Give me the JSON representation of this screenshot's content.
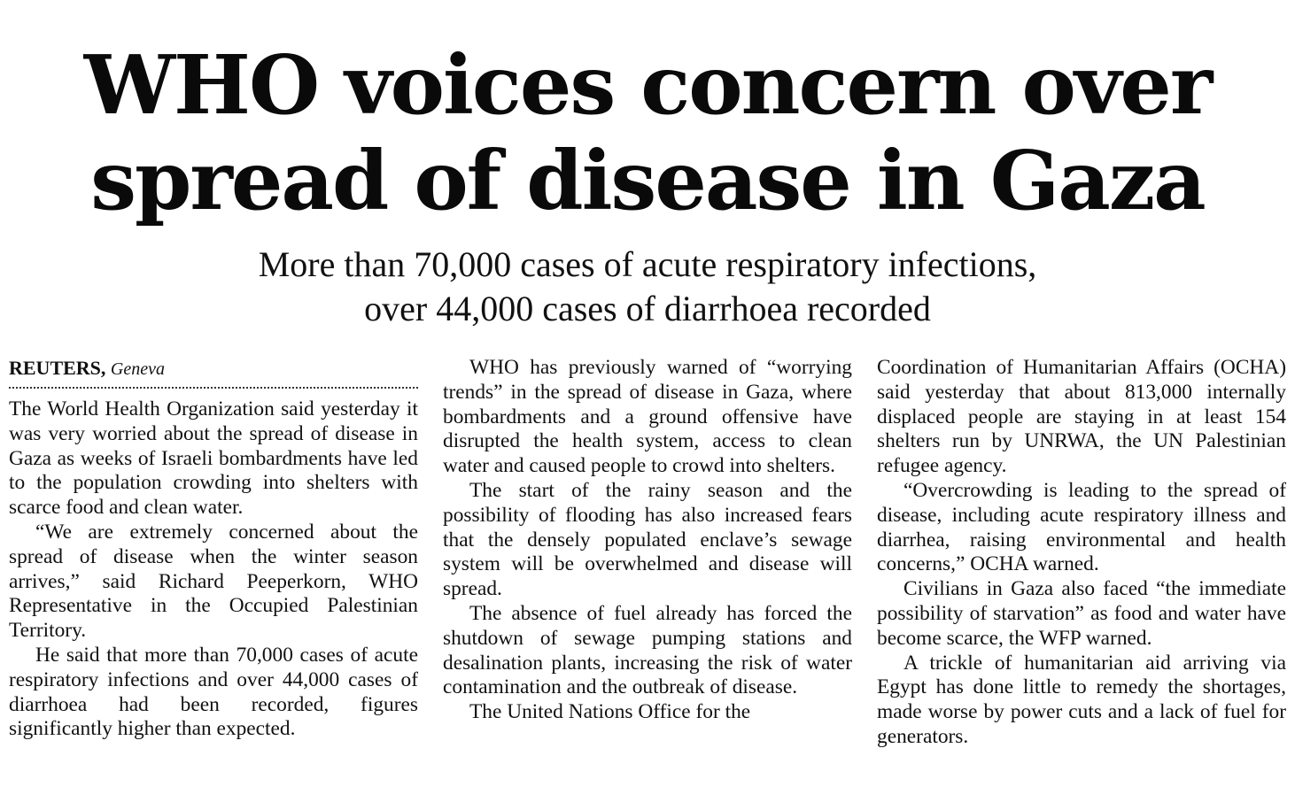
{
  "headline": {
    "line1": "WHO voices concern over",
    "line2": "spread of disease in Gaza"
  },
  "subhead": {
    "line1": "More than 70,000 cases of acute respiratory infections,",
    "line2": "over 44,000 cases of diarrhoea recorded"
  },
  "byline": {
    "agency": "REUTERS,",
    "place": "Geneva"
  },
  "body": {
    "p1": "The World Health Organization said yesterday it was very worried about the spread of disease in Gaza as weeks of Israeli bombardments have led to the population crowding into shelters with scarce food and clean water.",
    "p2": "“We are extremely concerned about the spread of disease when the winter season arrives,” said Richard Peeperkorn, WHO Representative in the Occupied Palestinian Territory.",
    "p3": "He said that more than 70,000 cases of acute respiratory infections and over 44,000 cases of diarrhoea had been recorded, figures significantly higher than expected.",
    "p4": "WHO has previously warned of “worrying trends” in the spread of disease in Gaza, where bombardments and a ground offensive have disrupted the health system, access to clean water and caused people to crowd into shelters.",
    "p5": "The start of the rainy season and the possibility of flooding has also increased fears that the densely populated enclave’s sewage system will be overwhelmed and disease will spread.",
    "p6": "The absence of fuel already has forced the shutdown of sewage pumping stations and desalination plants, increasing the risk of water contamination and the outbreak of disease.",
    "p7a": "The United Nations Office for the",
    "p7b": "Coordination of Humanitarian Affairs (OCHA) said yesterday that about 813,000 internally displaced people are staying in at least 154 shelters run by UNRWA, the UN Palestinian refugee agency.",
    "p8": "“Overcrowding is leading to the spread of disease, including acute respiratory illness and diarrhea, raising environmental and health concerns,” OCHA warned.",
    "p9": "Civilians in Gaza also faced “the immediate possibility of starvation” as food and water have become scarce, the WFP warned.",
    "p10": "A trickle of humanitarian aid arriving via Egypt has done little to remedy the shortages, made worse by power cuts and a lack of fuel for generators."
  }
}
